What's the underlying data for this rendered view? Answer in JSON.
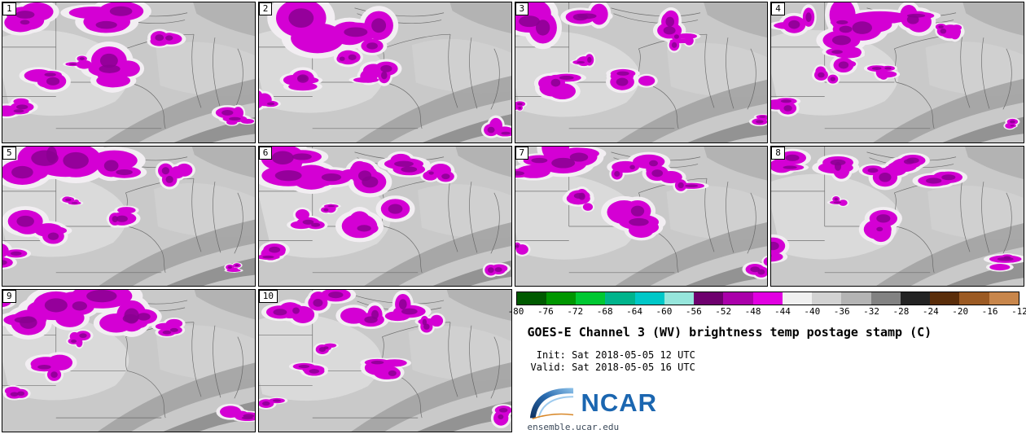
{
  "panels": [
    {
      "label": "1"
    },
    {
      "label": "2"
    },
    {
      "label": "3"
    },
    {
      "label": "4"
    },
    {
      "label": "5"
    },
    {
      "label": "6"
    },
    {
      "label": "7"
    },
    {
      "label": "8"
    },
    {
      "label": "9"
    },
    {
      "label": "10"
    }
  ],
  "colorbar": {
    "tick_labels": [
      "-80",
      "-76",
      "-72",
      "-68",
      "-64",
      "-60",
      "-56",
      "-52",
      "-48",
      "-44",
      "-40",
      "-36",
      "-32",
      "-28",
      "-24",
      "-20",
      "-16",
      "-12"
    ],
    "segment_colors": [
      "#005a00",
      "#009600",
      "#00c832",
      "#00b48c",
      "#00c8c8",
      "#96e6dc",
      "#6e006e",
      "#aa00aa",
      "#e100e1",
      "#f0f0f0",
      "#d2d2d2",
      "#b4b4b4",
      "#828282",
      "#232323",
      "#5a2d0a",
      "#9b5a23",
      "#c8864b"
    ]
  },
  "info": {
    "title": "GOES-E Channel 3 (WV) brightness temp postage stamp (C)",
    "init_line": " Init: Sat 2018-05-05 12 UTC",
    "valid_line": "Valid: Sat 2018-05-05 16 UTC",
    "logo_text": "NCAR",
    "site_url": "ensemble.ucar.edu"
  },
  "map_colors": {
    "base_gray": "#c9c9c9",
    "cold_top_magenta": "#d400d4",
    "cold_core_purple": "#8a0090",
    "fringe_white": "#f2eef2",
    "border_gray": "#5f5f5f"
  }
}
